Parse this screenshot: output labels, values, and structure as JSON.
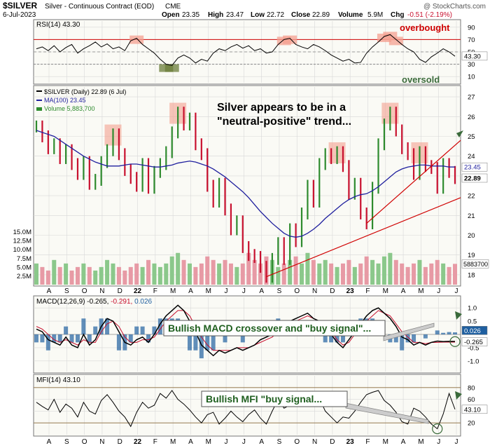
{
  "header": {
    "symbol": "$SILVER",
    "description": "Silver - Continuous Contract (EOD)",
    "exchange": "CME",
    "date": "6-Jul-2023",
    "ohlc": {
      "open_label": "Open",
      "open": "23.35",
      "high_label": "High",
      "high": "23.47",
      "low_label": "Low",
      "low": "22.72",
      "close_label": "Close",
      "close": "22.89",
      "volume_label": "Volume",
      "volume": "5.9M",
      "chg_label": "Chg",
      "chg": "-0.51 (-2.19%)"
    },
    "watermark": "@ StockCharts.com"
  },
  "colors": {
    "up": "#2e8b2e",
    "down": "#c8102e",
    "ma": "#1f1f9e",
    "rsi_line": "#000000",
    "ref_red": "#d00000",
    "highlight": "#f4a090",
    "oversold_box": "#6b7d3a",
    "signal_green": "#3a6a3a",
    "macd_hist": "#1f5fa0",
    "panel_bg": "#fafaf5",
    "grid": "#d8d8d8"
  },
  "chart_data": [
    {
      "type": "line",
      "panel": "RSI",
      "legend": "RSI(14) 43.30",
      "ylim": [
        0,
        100
      ],
      "yticks": [
        10,
        30,
        50,
        70,
        90
      ],
      "reference_lines": [
        70,
        30
      ],
      "last_value": 43.3,
      "last_label": "43.30",
      "overbought_label": "overbought",
      "oversold_label": "oversold",
      "series": [
        {
          "values": [
            55,
            58,
            52,
            60,
            50,
            57,
            62,
            48,
            55,
            60,
            66,
            58,
            63,
            55,
            58,
            52,
            68,
            72,
            62,
            55,
            48,
            38,
            30,
            28,
            40,
            45,
            40,
            32,
            38,
            35,
            48,
            55,
            52,
            58,
            62,
            56,
            60,
            52,
            55,
            48,
            50,
            62,
            70,
            72,
            62,
            58,
            55,
            62,
            58,
            52,
            45,
            40,
            35,
            38,
            32,
            33,
            48,
            58,
            66,
            75,
            78,
            70,
            62,
            55,
            50,
            38,
            33,
            42,
            48,
            55,
            50,
            43
          ]
        }
      ]
    },
    {
      "type": "line",
      "panel": "Price",
      "legend": [
        "$SILVER (Daily) 22.89 (6 Jul)",
        "MA(100) 23.45",
        "Volume 5,883,700"
      ],
      "annotation": [
        "Silver appears to be in a",
        "\"neutral-positive\" trend..."
      ],
      "ylim": [
        17.5,
        27.5
      ],
      "yticks": [
        18,
        19,
        20,
        21,
        22,
        23,
        24,
        25,
        26,
        27
      ],
      "last_close": 22.89,
      "last_close_label": "22.89",
      "ma_last": 23.45,
      "ma_last_label": "23.45",
      "volume_ticks": [
        "2.5M",
        "5.0M",
        "7.5M",
        "10.0M",
        "12.5M",
        "15.0M"
      ],
      "volume_last_label": "5883700",
      "volume_max": 17.5,
      "series": [
        {
          "name": "$SILVER (Daily)",
          "values": [
            25.5,
            25.0,
            24.4,
            24.6,
            23.9,
            24.3,
            23.6,
            23.1,
            23.7,
            22.6,
            22.8,
            23.7,
            24.3,
            25.1,
            24.1,
            23.3,
            22.9,
            22.5,
            23.6,
            22.4,
            23.2,
            23.6,
            24.2,
            25.2,
            26.2,
            25.6,
            25.9,
            24.6,
            24.1,
            22.5,
            21.7,
            22.6,
            21.3,
            20.3,
            20.7,
            19.4,
            19.0,
            18.9,
            18.4,
            17.9,
            18.8,
            19.6,
            18.8,
            20.3,
            19.7,
            21.1,
            22.5,
            21.7,
            23.6,
            24.1,
            23.9,
            24.2,
            23.5,
            22.1,
            22.6,
            21.1,
            20.6,
            22.4,
            24.6,
            25.6,
            26.2,
            25.3,
            24.4,
            24.1,
            23.1,
            24.2,
            23.5,
            23.4,
            22.4,
            23.6,
            23.2,
            22.89
          ]
        },
        {
          "name": "MA(100)",
          "values": [
            25.3,
            25.2,
            25.1,
            25.0,
            24.8,
            24.6,
            24.4,
            24.2,
            24.0,
            23.85,
            23.7,
            23.6,
            23.5,
            23.5,
            23.5,
            23.55,
            23.6,
            23.6,
            23.55,
            23.5,
            23.45,
            23.45,
            23.5,
            23.55,
            23.65,
            23.7,
            23.75,
            23.7,
            23.6,
            23.5,
            23.35,
            23.15,
            22.95,
            22.7,
            22.45,
            22.2,
            21.9,
            21.55,
            21.2,
            20.9,
            20.6,
            20.35,
            20.1,
            19.95,
            19.9,
            19.95,
            20.1,
            20.3,
            20.55,
            20.85,
            21.1,
            21.35,
            21.6,
            21.8,
            21.95,
            22.05,
            22.1,
            22.25,
            22.45,
            22.7,
            22.95,
            23.2,
            23.35,
            23.45,
            23.5,
            23.55,
            23.55,
            23.5,
            23.5,
            23.5,
            23.45,
            23.45
          ]
        }
      ],
      "volume": [
        6,
        5,
        4,
        7,
        5,
        6,
        4,
        5,
        6,
        5,
        4,
        5,
        7,
        6,
        5,
        4,
        5,
        6,
        5,
        7,
        6,
        5,
        6,
        8,
        9,
        7,
        6,
        5,
        6,
        8,
        7,
        6,
        7,
        6,
        5,
        6,
        9,
        7,
        6,
        8,
        7,
        5,
        6,
        7,
        8,
        6,
        9,
        7,
        6,
        7,
        6,
        5,
        6,
        7,
        5,
        6,
        8,
        7,
        6,
        8,
        9,
        7,
        6,
        5,
        6,
        7,
        5,
        6,
        7,
        6,
        5,
        5.9
      ]
    },
    {
      "type": "line",
      "panel": "MACD",
      "legend": "MACD(12,26,9) -0.265, -0.291, 0.026",
      "annotation": "Bullish MACD crossover and \"buy signal\"...",
      "ylim": [
        -1.4,
        1.4
      ],
      "yticks": [
        -1.0,
        -0.5,
        0.5,
        1.0
      ],
      "last_labels": [
        "0.026",
        "-0.265"
      ],
      "series": [
        {
          "name": "MACD",
          "values": [
            0.2,
            0.1,
            -0.2,
            -0.3,
            -0.4,
            -0.1,
            -0.4,
            -0.5,
            0.0,
            -0.4,
            -0.2,
            0.3,
            0.6,
            0.5,
            0.1,
            -0.3,
            -0.4,
            -0.2,
            -0.1,
            -0.3,
            0.0,
            0.4,
            0.7,
            0.9,
            1.1,
            0.9,
            0.5,
            0.1,
            -0.4,
            -0.6,
            -0.8,
            -0.6,
            -0.7,
            -0.6,
            -0.5,
            -0.6,
            -0.5,
            -0.4,
            -0.2,
            -0.1,
            0.0,
            0.3,
            0.4,
            0.5,
            0.6,
            0.7,
            0.8,
            0.6,
            0.5,
            0.3,
            0.0,
            -0.3,
            -0.5,
            -0.2,
            0.1,
            0.4,
            0.7,
            0.9,
            1.0,
            0.8,
            0.6,
            0.3,
            -0.1,
            -0.2,
            -0.4,
            -0.3,
            -0.4,
            -0.3,
            -0.25,
            -0.27,
            -0.26,
            -0.265
          ]
        },
        {
          "name": "Signal",
          "values": [
            0.3,
            0.2,
            0.0,
            -0.2,
            -0.3,
            -0.2,
            -0.3,
            -0.4,
            -0.2,
            -0.3,
            -0.3,
            0.1,
            0.4,
            0.5,
            0.3,
            -0.1,
            -0.3,
            -0.3,
            -0.2,
            -0.2,
            -0.1,
            0.2,
            0.5,
            0.7,
            0.9,
            0.9,
            0.7,
            0.3,
            -0.1,
            -0.4,
            -0.6,
            -0.6,
            -0.6,
            -0.6,
            -0.5,
            -0.5,
            -0.5,
            -0.4,
            -0.3,
            -0.2,
            -0.1,
            0.1,
            0.3,
            0.4,
            0.5,
            0.6,
            0.7,
            0.6,
            0.5,
            0.4,
            0.1,
            -0.2,
            -0.4,
            -0.3,
            0.0,
            0.2,
            0.5,
            0.7,
            0.9,
            0.8,
            0.7,
            0.4,
            0.1,
            -0.1,
            -0.3,
            -0.3,
            -0.35,
            -0.3,
            -0.3,
            -0.29,
            -0.29,
            -0.291
          ]
        }
      ]
    },
    {
      "type": "line",
      "panel": "MFI",
      "legend": "MFI(14) 43.10",
      "annotation": "Bullish MFI \"buy signal...",
      "ylim": [
        0,
        100
      ],
      "yticks": [
        20,
        40,
        60,
        80
      ],
      "reference_lines": [
        80,
        20
      ],
      "last_value": 43.1,
      "last_label": "43.10",
      "series": [
        {
          "values": [
            55,
            48,
            42,
            60,
            38,
            52,
            45,
            30,
            55,
            40,
            35,
            58,
            68,
            55,
            40,
            30,
            14,
            38,
            55,
            45,
            50,
            70,
            62,
            75,
            60,
            52,
            42,
            30,
            20,
            34,
            38,
            18,
            28,
            40,
            30,
            22,
            34,
            42,
            28,
            18,
            40,
            60,
            45,
            50,
            58,
            70,
            72,
            55,
            62,
            40,
            30,
            20,
            30,
            28,
            40,
            55,
            68,
            72,
            75,
            58,
            50,
            38,
            22,
            18,
            45,
            40,
            30,
            18,
            10,
            35,
            70,
            43
          ]
        }
      ]
    }
  ],
  "x_axis": {
    "labels": [
      "A",
      "S",
      "O",
      "N",
      "D",
      "22",
      "F",
      "M",
      "A",
      "M",
      "J",
      "J",
      "A",
      "S",
      "O",
      "N",
      "D",
      "23",
      "F",
      "M",
      "A",
      "M",
      "J",
      "J"
    ],
    "bold": [
      "22",
      "23"
    ]
  }
}
